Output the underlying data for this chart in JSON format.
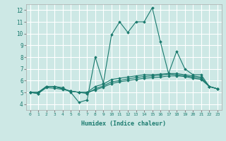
{
  "xlabel": "Humidex (Indice chaleur)",
  "background_color": "#cde8e5",
  "grid_color": "#ffffff",
  "line_color": "#1a7a6e",
  "xlim": [
    -0.5,
    23.5
  ],
  "ylim": [
    3.5,
    12.5
  ],
  "xticks": [
    0,
    1,
    2,
    3,
    4,
    5,
    6,
    7,
    8,
    9,
    10,
    11,
    12,
    13,
    14,
    15,
    16,
    17,
    18,
    19,
    20,
    21,
    22,
    23
  ],
  "yticks": [
    4,
    5,
    6,
    7,
    8,
    9,
    10,
    11,
    12
  ],
  "series": [
    [
      5.0,
      4.9,
      5.5,
      5.5,
      5.4,
      5.0,
      4.15,
      4.35,
      8.0,
      5.8,
      9.9,
      11.0,
      10.1,
      11.0,
      11.0,
      12.2,
      9.3,
      6.6,
      8.5,
      7.0,
      6.5,
      6.5,
      5.5,
      5.3
    ],
    [
      5.0,
      5.0,
      5.5,
      5.5,
      5.3,
      5.1,
      5.0,
      5.0,
      5.5,
      5.7,
      6.1,
      6.2,
      6.3,
      6.4,
      6.5,
      6.5,
      6.55,
      6.6,
      6.6,
      6.5,
      6.4,
      6.3,
      5.5,
      5.3
    ],
    [
      5.0,
      5.0,
      5.5,
      5.5,
      5.3,
      5.1,
      5.0,
      4.9,
      5.3,
      5.55,
      5.9,
      6.0,
      6.15,
      6.25,
      6.35,
      6.4,
      6.45,
      6.55,
      6.5,
      6.4,
      6.3,
      6.2,
      5.5,
      5.3
    ],
    [
      5.0,
      4.9,
      5.4,
      5.35,
      5.25,
      5.1,
      5.0,
      5.0,
      5.2,
      5.45,
      5.75,
      5.9,
      6.0,
      6.1,
      6.2,
      6.25,
      6.3,
      6.4,
      6.4,
      6.35,
      6.2,
      6.1,
      5.5,
      5.3
    ]
  ]
}
